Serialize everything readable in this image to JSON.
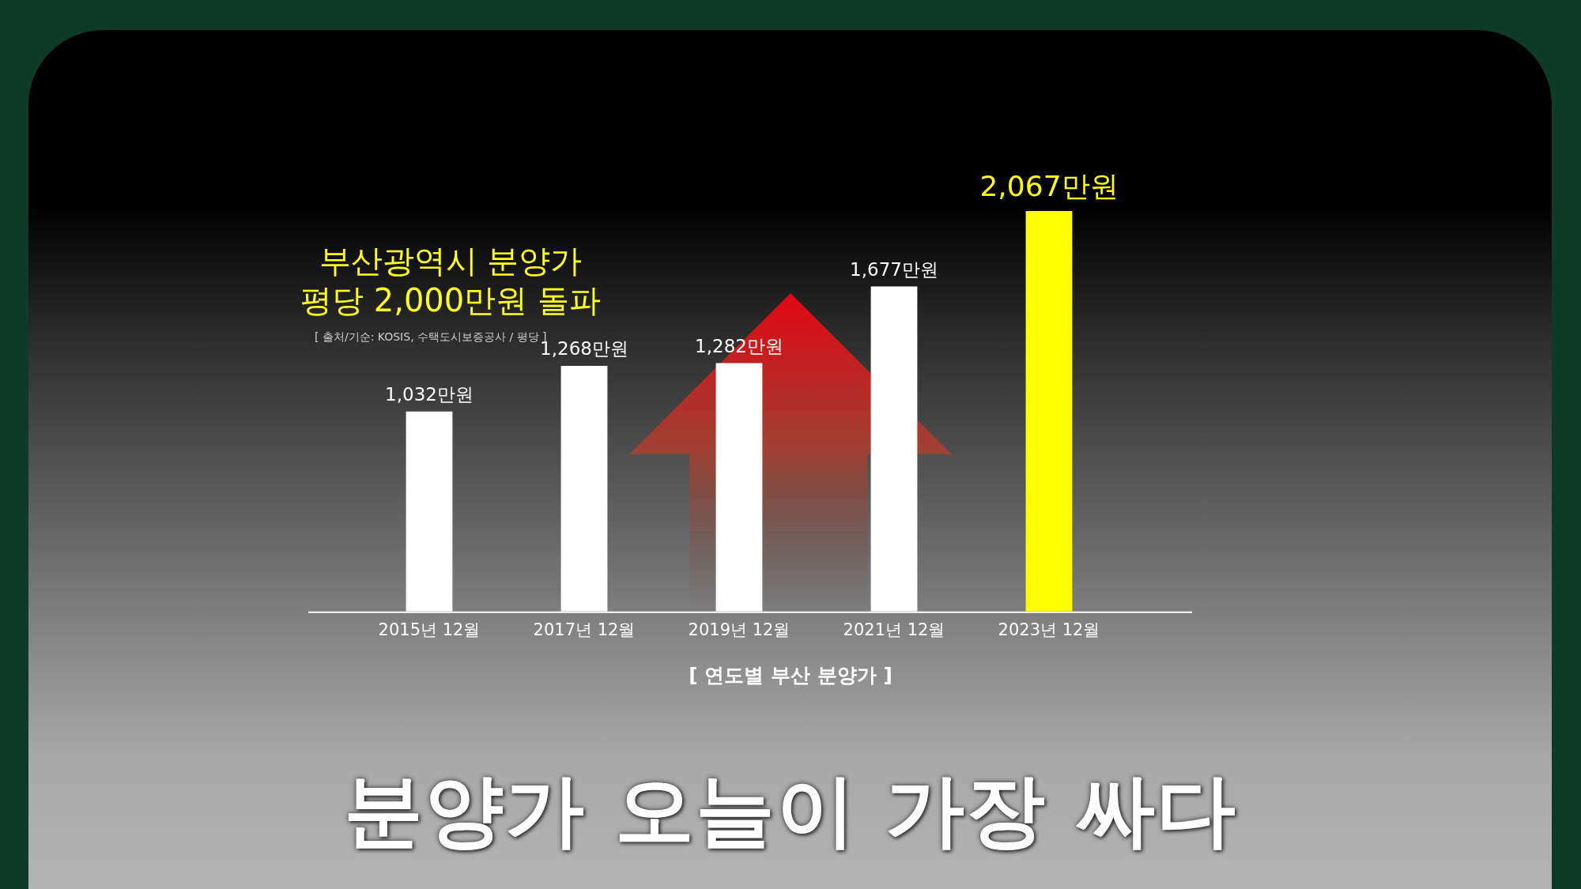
{
  "chart_data": {
    "type": "bar",
    "title": "분양가 오늘이 가장 싸다",
    "subtitle": "부산광역시 분양가\n평당 2,000만원 돌파",
    "xlabel": "[ 연도별 부산 분양가 ]",
    "annotations": [
      "[ 출처/기순: KOSIS, 수택도시보증공사 / 평당 ]"
    ],
    "categories": [
      "2015년 12월",
      "2017년 12월",
      "2019년 12월",
      "2021년 12월",
      "2023년 12월"
    ],
    "values": [
      1032,
      1268,
      1282,
      1677,
      2067
    ],
    "colors": [
      "#ffffff",
      "#ffffff",
      "#ffffff",
      "#ffffff",
      "#ffff00"
    ],
    "value_labels": [
      "1,032만원",
      "1,268만원",
      "1,282만원",
      "1,677만원",
      "2,067만원"
    ],
    "grid": false,
    "legend": false
  }
}
